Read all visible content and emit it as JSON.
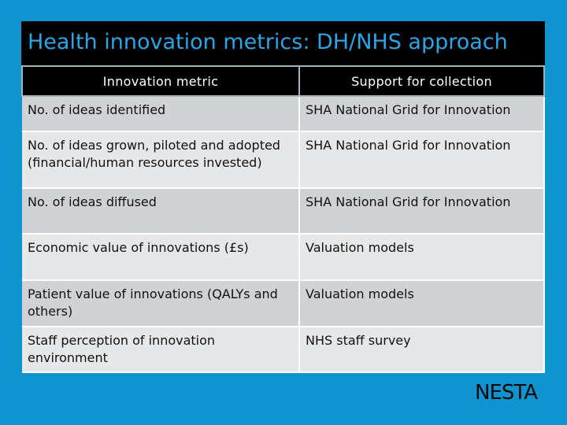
{
  "title": "Health innovation metrics: DH/NHS approach",
  "table": {
    "headers": [
      "Innovation metric",
      "Support for collection"
    ],
    "rows": [
      {
        "metric": "No. of ideas identified",
        "support": "SHA National Grid for Innovation"
      },
      {
        "metric": "No. of ideas grown, piloted and adopted (financial/human resources invested)",
        "support": "SHA National Grid for Innovation"
      },
      {
        "metric": "No. of ideas diffused",
        "support": "SHA National Grid for Innovation"
      },
      {
        "metric": "Economic  value of innovations (£s)",
        "support": "Valuation models"
      },
      {
        "metric": "Patient value of innovations (QALYs and others)",
        "support": "Valuation models"
      },
      {
        "metric": "Staff perception of innovation environment",
        "support": "NHS staff survey"
      }
    ]
  },
  "logo": "NESTA"
}
